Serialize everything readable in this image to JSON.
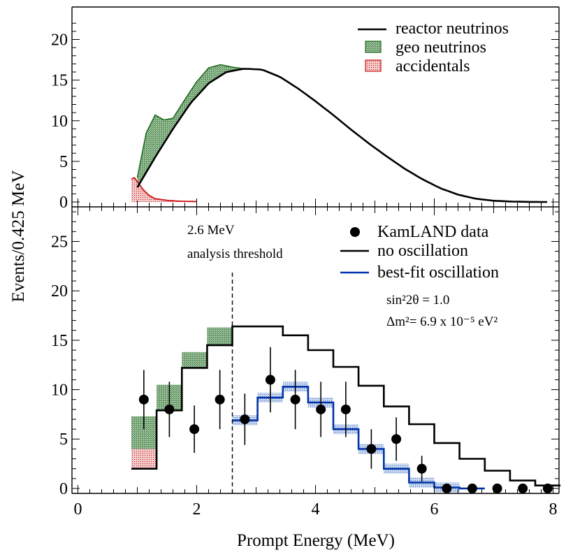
{
  "chart_data": [
    {
      "type": "area",
      "panel": "top",
      "ylim": [
        0,
        24
      ],
      "xlim": [
        -0.1,
        8.1
      ],
      "yticks": [
        "0",
        "5",
        "10",
        "15",
        "20"
      ],
      "legend": [
        {
          "key": "reactor",
          "label": "reactor neutrinos",
          "color": "#000000"
        },
        {
          "key": "geo",
          "label": "geo neutrinos",
          "color": "#1e6b1e"
        },
        {
          "key": "acc",
          "label": "accidentals",
          "color": "#cc1111"
        }
      ],
      "legend_position": "top-right",
      "series": [
        {
          "key": "reactor",
          "x": [
            1.0,
            1.3,
            1.6,
            1.9,
            2.2,
            2.5,
            2.8,
            3.1,
            3.4,
            3.7,
            4.0,
            4.3,
            4.6,
            4.9,
            5.2,
            5.5,
            5.8,
            6.1,
            6.4,
            6.7,
            7.0,
            7.3,
            7.6,
            7.9
          ],
          "values": [
            1.8,
            5.5,
            9.0,
            12.2,
            14.6,
            16.0,
            16.4,
            16.3,
            15.4,
            14.0,
            12.4,
            10.7,
            8.9,
            7.2,
            5.6,
            4.1,
            2.8,
            1.7,
            0.9,
            0.4,
            0.15,
            0.05,
            0.01,
            0.0
          ]
        },
        {
          "key": "geo_top",
          "x": [
            1.0,
            1.15,
            1.3,
            1.45,
            1.6,
            1.8,
            2.0,
            2.2,
            2.4,
            2.6,
            2.8
          ],
          "values": [
            3.0,
            8.5,
            10.7,
            10.1,
            10.3,
            12.6,
            14.8,
            16.5,
            16.9,
            16.6,
            16.4
          ]
        },
        {
          "key": "acc",
          "x": [
            0.9,
            0.95,
            1.0,
            1.1,
            1.2,
            1.3,
            1.5,
            1.7,
            2.0
          ],
          "values": [
            2.8,
            3.0,
            2.5,
            1.5,
            0.8,
            0.4,
            0.2,
            0.1,
            0.05
          ]
        }
      ]
    },
    {
      "type": "scatter",
      "panel": "bottom",
      "xlabel": "Prompt Energy (MeV)",
      "ylabel": "Events/0.425 MeV",
      "xlim": [
        -0.1,
        8.1
      ],
      "ylim": [
        -0.5,
        28.5
      ],
      "xticks": [
        "0",
        "2",
        "4",
        "6",
        "8"
      ],
      "yticks": [
        "0",
        "5",
        "10",
        "15",
        "20",
        "25"
      ],
      "legend": [
        {
          "key": "data",
          "label": "KamLAND data",
          "color": "#000000"
        },
        {
          "key": "noosc",
          "label": "no oscillation",
          "color": "#000000"
        },
        {
          "key": "bestfit",
          "label": "best-fit oscillation",
          "color": "#0033aa"
        }
      ],
      "legend_position": "top-right",
      "fit_text_1": "sin²2θ = 1.0",
      "fit_text_2": "Δm²= 6.9 x 10⁻⁵ eV²",
      "annotation_1": "2.6 MeV",
      "annotation_2": "analysis threshold",
      "threshold_x": 2.6,
      "bin_edges": [
        0.9,
        1.325,
        1.75,
        2.175,
        2.6,
        3.025,
        3.45,
        3.875,
        4.3,
        4.725,
        5.15,
        5.575,
        6.0,
        6.425,
        6.85,
        7.275,
        7.7,
        8.125
      ],
      "no_oscillation": [
        2.0,
        7.9,
        12.2,
        14.5,
        16.4,
        16.4,
        15.5,
        14.0,
        12.3,
        10.4,
        8.3,
        6.5,
        4.6,
        3.0,
        1.8,
        0.8,
        0.3
      ],
      "geo_band_top": [
        7.3,
        10.5,
        13.8,
        16.3
      ],
      "acc_band_top": [
        4.0
      ],
      "best_fit": [
        null,
        null,
        null,
        null,
        6.9,
        9.2,
        10.3,
        8.7,
        6.0,
        4.0,
        2.0,
        0.6,
        0.1,
        0.0,
        null,
        null,
        null
      ],
      "points": {
        "x": [
          1.11,
          1.54,
          1.96,
          2.39,
          2.81,
          3.24,
          3.66,
          4.09,
          4.51,
          4.94,
          5.36,
          5.79,
          6.21,
          6.64,
          7.06,
          7.49,
          7.91
        ],
        "y": [
          9,
          8,
          6,
          9,
          7,
          11,
          9,
          8,
          8,
          4,
          5,
          2,
          0,
          0,
          0,
          0,
          0
        ],
        "err_lo": [
          3.0,
          2.8,
          2.4,
          3.0,
          2.6,
          3.3,
          3.0,
          2.8,
          2.8,
          2.0,
          2.2,
          1.3,
          0.0,
          0.0,
          0.0,
          0.0,
          0.0
        ],
        "err_hi": [
          3.0,
          2.8,
          2.4,
          3.0,
          2.6,
          3.3,
          3.0,
          2.8,
          2.8,
          2.0,
          2.2,
          1.3,
          0.0,
          0.0,
          0.0,
          0.0,
          0.0
        ]
      }
    }
  ]
}
